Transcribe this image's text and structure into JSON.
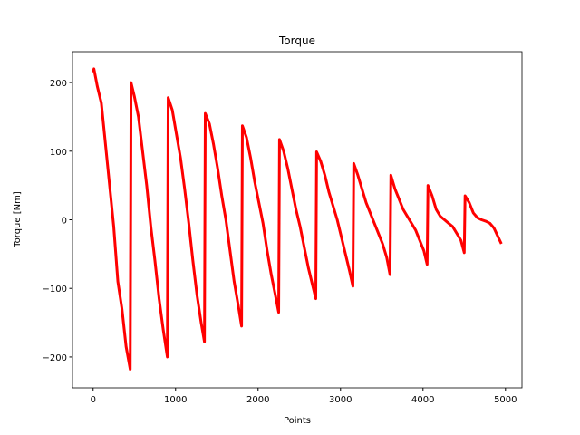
{
  "chart_data": {
    "type": "line",
    "title": "Torque",
    "x_label": "Points",
    "y_label": "Torque [Nm]",
    "color": "#ff0000",
    "x": [
      0,
      10,
      50,
      100,
      150,
      200,
      250,
      300,
      350,
      400,
      450,
      460,
      500,
      550,
      600,
      650,
      700,
      750,
      800,
      850,
      900,
      910,
      960,
      1010,
      1060,
      1110,
      1160,
      1210,
      1260,
      1310,
      1350,
      1360,
      1410,
      1460,
      1510,
      1560,
      1610,
      1660,
      1710,
      1760,
      1800,
      1810,
      1860,
      1910,
      1960,
      2010,
      2060,
      2110,
      2160,
      2210,
      2250,
      2260,
      2310,
      2360,
      2410,
      2460,
      2510,
      2560,
      2610,
      2660,
      2700,
      2710,
      2760,
      2810,
      2860,
      2910,
      2960,
      3010,
      3060,
      3110,
      3150,
      3160,
      3210,
      3260,
      3310,
      3360,
      3410,
      3460,
      3510,
      3560,
      3600,
      3610,
      3660,
      3710,
      3760,
      3810,
      3860,
      3910,
      3960,
      4010,
      4050,
      4060,
      4110,
      4160,
      4210,
      4260,
      4310,
      4360,
      4410,
      4460,
      4500,
      4510,
      4560,
      4610,
      4660,
      4710,
      4760,
      4810,
      4860,
      4910,
      4950
    ],
    "values": [
      215,
      220,
      195,
      170,
      110,
      50,
      -10,
      -90,
      -130,
      -185,
      -218,
      200,
      180,
      150,
      100,
      50,
      -10,
      -60,
      -115,
      -160,
      -200,
      178,
      160,
      125,
      90,
      45,
      -5,
      -60,
      -110,
      -150,
      -178,
      155,
      140,
      110,
      75,
      35,
      0,
      -45,
      -90,
      -125,
      -155,
      137,
      120,
      90,
      55,
      25,
      -5,
      -45,
      -80,
      -110,
      -135,
      117,
      100,
      75,
      45,
      15,
      -10,
      -40,
      -70,
      -95,
      -115,
      99,
      85,
      65,
      40,
      20,
      0,
      -25,
      -50,
      -75,
      -97,
      82,
      65,
      45,
      25,
      10,
      -5,
      -20,
      -35,
      -55,
      -80,
      65,
      45,
      30,
      15,
      5,
      -5,
      -15,
      -30,
      -45,
      -65,
      50,
      35,
      15,
      5,
      0,
      -5,
      -10,
      -20,
      -30,
      -48,
      35,
      25,
      10,
      3,
      0,
      -2,
      -5,
      -12,
      -25,
      -35
    ],
    "xlim": [
      -250,
      5200
    ],
    "ylim": [
      -245,
      245
    ],
    "xticks": [
      0,
      1000,
      2000,
      3000,
      4000,
      5000
    ],
    "yticks": [
      {
        "value": -200,
        "label": "−200"
      },
      {
        "value": -100,
        "label": "−100"
      },
      0,
      100,
      200
    ]
  }
}
